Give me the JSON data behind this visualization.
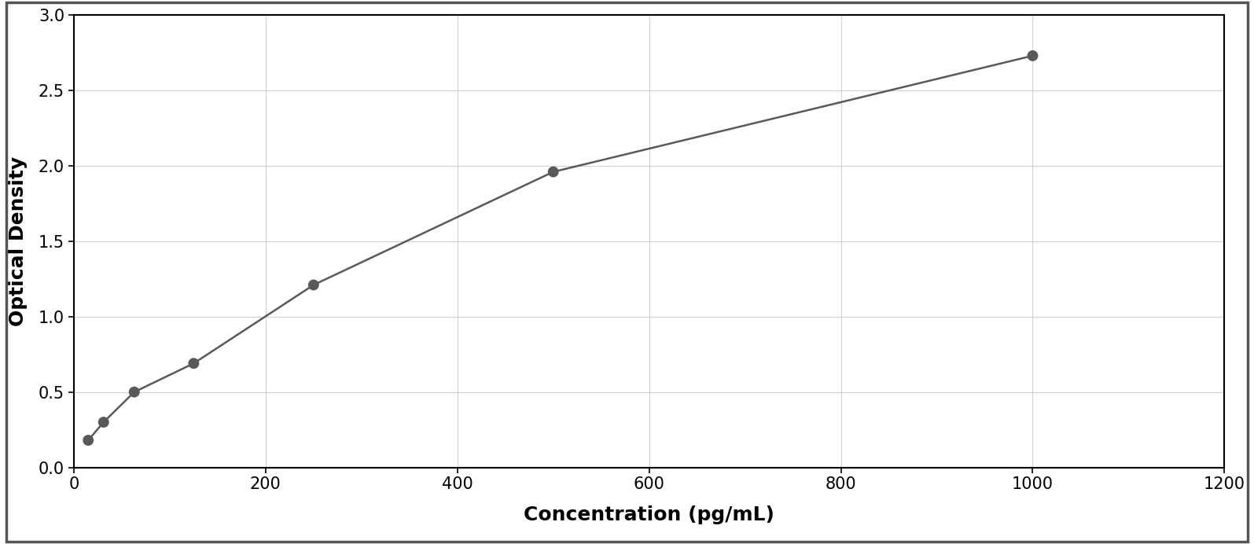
{
  "x_data": [
    15,
    31,
    63,
    125,
    250,
    500,
    1000
  ],
  "y_data": [
    0.18,
    0.3,
    0.5,
    0.69,
    1.21,
    1.96,
    2.73
  ],
  "xlabel": "Concentration (pg/mL)",
  "ylabel": "Optical Density",
  "xlim": [
    0,
    1200
  ],
  "ylim": [
    0,
    3
  ],
  "xticks": [
    0,
    200,
    400,
    600,
    800,
    1000,
    1200
  ],
  "yticks": [
    0,
    0.5,
    1.0,
    1.5,
    2.0,
    2.5,
    3.0
  ],
  "marker_color": "#595959",
  "line_color": "#595959",
  "grid_color": "#d0d0d0",
  "background_color": "#ffffff",
  "border_color": "#000000",
  "outer_border_color": "#555555",
  "marker_size": 10,
  "line_width": 1.8,
  "xlabel_fontsize": 18,
  "ylabel_fontsize": 18,
  "tick_fontsize": 15,
  "xlabel_fontweight": "bold",
  "ylabel_fontweight": "bold"
}
